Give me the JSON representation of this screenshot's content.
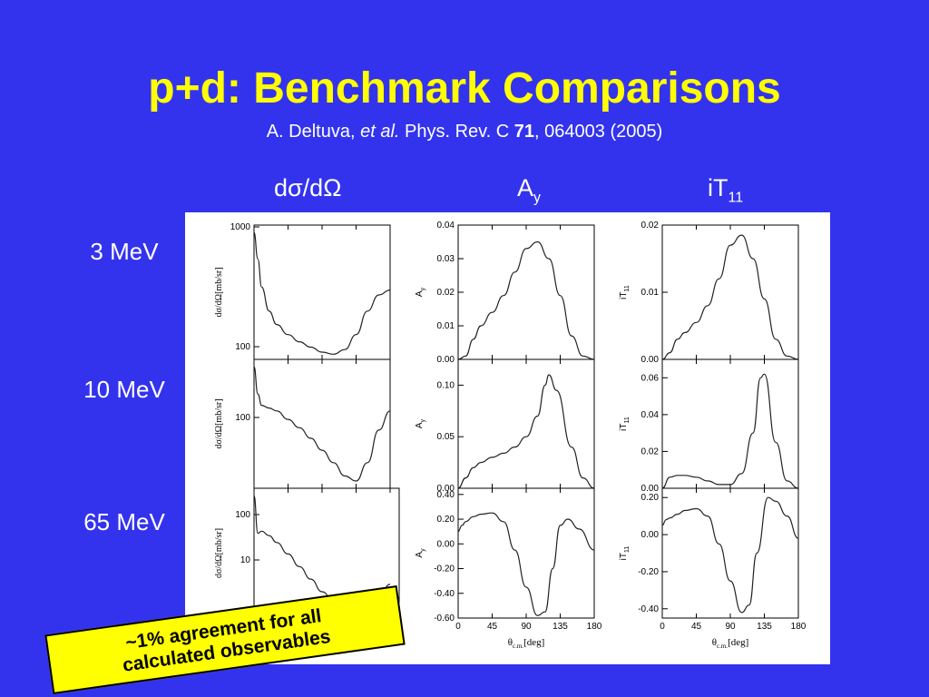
{
  "slide": {
    "title": "p+d: Benchmark Comparisons",
    "citation_author": "A. Deltuva, ",
    "citation_etal": "et al.",
    "citation_journal": " Phys. Rev. C ",
    "citation_volume": "71",
    "citation_rest": ", 064003 (2005)"
  },
  "columns": {
    "dsigma": "dσ/dΩ",
    "ay_main": "A",
    "ay_sub": "y",
    "it_main": "iT",
    "it_sub": "11"
  },
  "rows": [
    "3 MeV",
    "10 MeV",
    "65 MeV"
  ],
  "callout": {
    "line1": "~1% agreement for all",
    "line2": "calculated observables"
  },
  "chart_data": [
    {
      "type": "line",
      "ylabel": "dσ/dΩ[mb/sr]",
      "yticks": [
        "1000",
        "100"
      ],
      "x": [
        0,
        5,
        10,
        20,
        30,
        45,
        60,
        75,
        90,
        105,
        120,
        135,
        150,
        165,
        180
      ],
      "values": [
        1000,
        600,
        350,
        220,
        170,
        140,
        122,
        110,
        100,
        96,
        105,
        140,
        220,
        300,
        330
      ]
    },
    {
      "type": "line",
      "ylabel": "A_y",
      "yticks": [
        "0.00",
        "0.01",
        "0.02",
        "0.03",
        "0.04"
      ],
      "ylim": [
        0,
        0.04
      ],
      "x": [
        0,
        10,
        20,
        30,
        45,
        60,
        75,
        90,
        105,
        120,
        135,
        150,
        165,
        180
      ],
      "values": [
        0,
        0.001,
        0.006,
        0.01,
        0.014,
        0.019,
        0.026,
        0.033,
        0.035,
        0.03,
        0.019,
        0.007,
        0.001,
        0
      ]
    },
    {
      "type": "line",
      "ylabel": "iT_11",
      "yticks": [
        "0.00",
        "0.01",
        "0.02"
      ],
      "ylim": [
        0,
        0.02
      ],
      "x": [
        0,
        10,
        20,
        30,
        45,
        60,
        75,
        90,
        105,
        120,
        135,
        150,
        165,
        180
      ],
      "values": [
        0,
        0.001,
        0.003,
        0.004,
        0.0055,
        0.008,
        0.012,
        0.017,
        0.0185,
        0.015,
        0.009,
        0.003,
        0.0005,
        0
      ]
    },
    {
      "type": "line",
      "ylabel": "dσ/dΩ[mb/sr]",
      "yticks": [
        "100"
      ],
      "x": [
        0,
        5,
        10,
        20,
        30,
        45,
        60,
        75,
        90,
        105,
        120,
        135,
        150,
        165,
        180
      ],
      "values": [
        400,
        200,
        150,
        140,
        130,
        105,
        85,
        65,
        48,
        35,
        25,
        22,
        35,
        80,
        130
      ]
    },
    {
      "type": "line",
      "ylabel": "A_y",
      "yticks": [
        "0.00",
        "0.05",
        "0.10"
      ],
      "ylim": [
        0,
        0.125
      ],
      "x": [
        0,
        10,
        20,
        30,
        45,
        60,
        75,
        90,
        105,
        115,
        120,
        130,
        150,
        165,
        180
      ],
      "values": [
        0,
        0.01,
        0.02,
        0.025,
        0.03,
        0.034,
        0.04,
        0.05,
        0.07,
        0.1,
        0.11,
        0.095,
        0.04,
        0.01,
        0
      ]
    },
    {
      "type": "line",
      "ylabel": "iT_11",
      "yticks": [
        "0.00",
        "0.02",
        "0.04",
        "0.06"
      ],
      "ylim": [
        0,
        0.07
      ],
      "x": [
        0,
        10,
        20,
        30,
        45,
        60,
        75,
        90,
        105,
        120,
        130,
        135,
        150,
        165,
        180
      ],
      "values": [
        0,
        0.006,
        0.007,
        0.007,
        0.006,
        0.004,
        0.002,
        0.002,
        0.008,
        0.03,
        0.06,
        0.062,
        0.025,
        0.004,
        0
      ]
    },
    {
      "type": "line",
      "ylabel": "dσ/dΩ[mb/sr]",
      "yticks": [
        "100",
        "10"
      ],
      "x": [
        0,
        5,
        10,
        20,
        30,
        45,
        60,
        75,
        90,
        105,
        120,
        135,
        150,
        165,
        180
      ],
      "values": [
        200,
        25,
        28,
        22,
        15,
        8,
        4,
        2,
        1,
        0.6,
        0.4,
        0.35,
        0.4,
        0.8,
        1.5
      ]
    },
    {
      "type": "line",
      "ylabel": "A_y",
      "yticks": [
        "0.40",
        "0.20",
        "0.00",
        "-0.20",
        "-0.40",
        "-0.60"
      ],
      "ylim": [
        -0.6,
        0.45
      ],
      "x": [
        0,
        5,
        10,
        20,
        30,
        45,
        60,
        75,
        90,
        105,
        115,
        125,
        135,
        145,
        160,
        180
      ],
      "values": [
        0.1,
        0.15,
        0.18,
        0.22,
        0.24,
        0.25,
        0.18,
        -0.05,
        -0.35,
        -0.58,
        -0.55,
        -0.2,
        0.15,
        0.2,
        0.12,
        -0.05
      ]
    },
    {
      "type": "line",
      "ylabel": "iT_11",
      "yticks": [
        "0.20",
        "0.00",
        "-0.20",
        "-0.40"
      ],
      "ylim": [
        -0.45,
        0.25
      ],
      "x": [
        0,
        5,
        10,
        20,
        30,
        45,
        60,
        75,
        90,
        105,
        115,
        125,
        140,
        150,
        165,
        180
      ],
      "values": [
        0.05,
        0.08,
        0.09,
        0.11,
        0.13,
        0.14,
        0.1,
        -0.05,
        -0.25,
        -0.42,
        -0.38,
        -0.1,
        0.2,
        0.18,
        0.1,
        -0.02
      ]
    }
  ],
  "xaxis": {
    "ticks": [
      "0",
      "45",
      "90",
      "135",
      "180"
    ],
    "label": "θ",
    "label_sub": "c.m.",
    "label_unit": "[deg]",
    "partial_tick": "0"
  }
}
